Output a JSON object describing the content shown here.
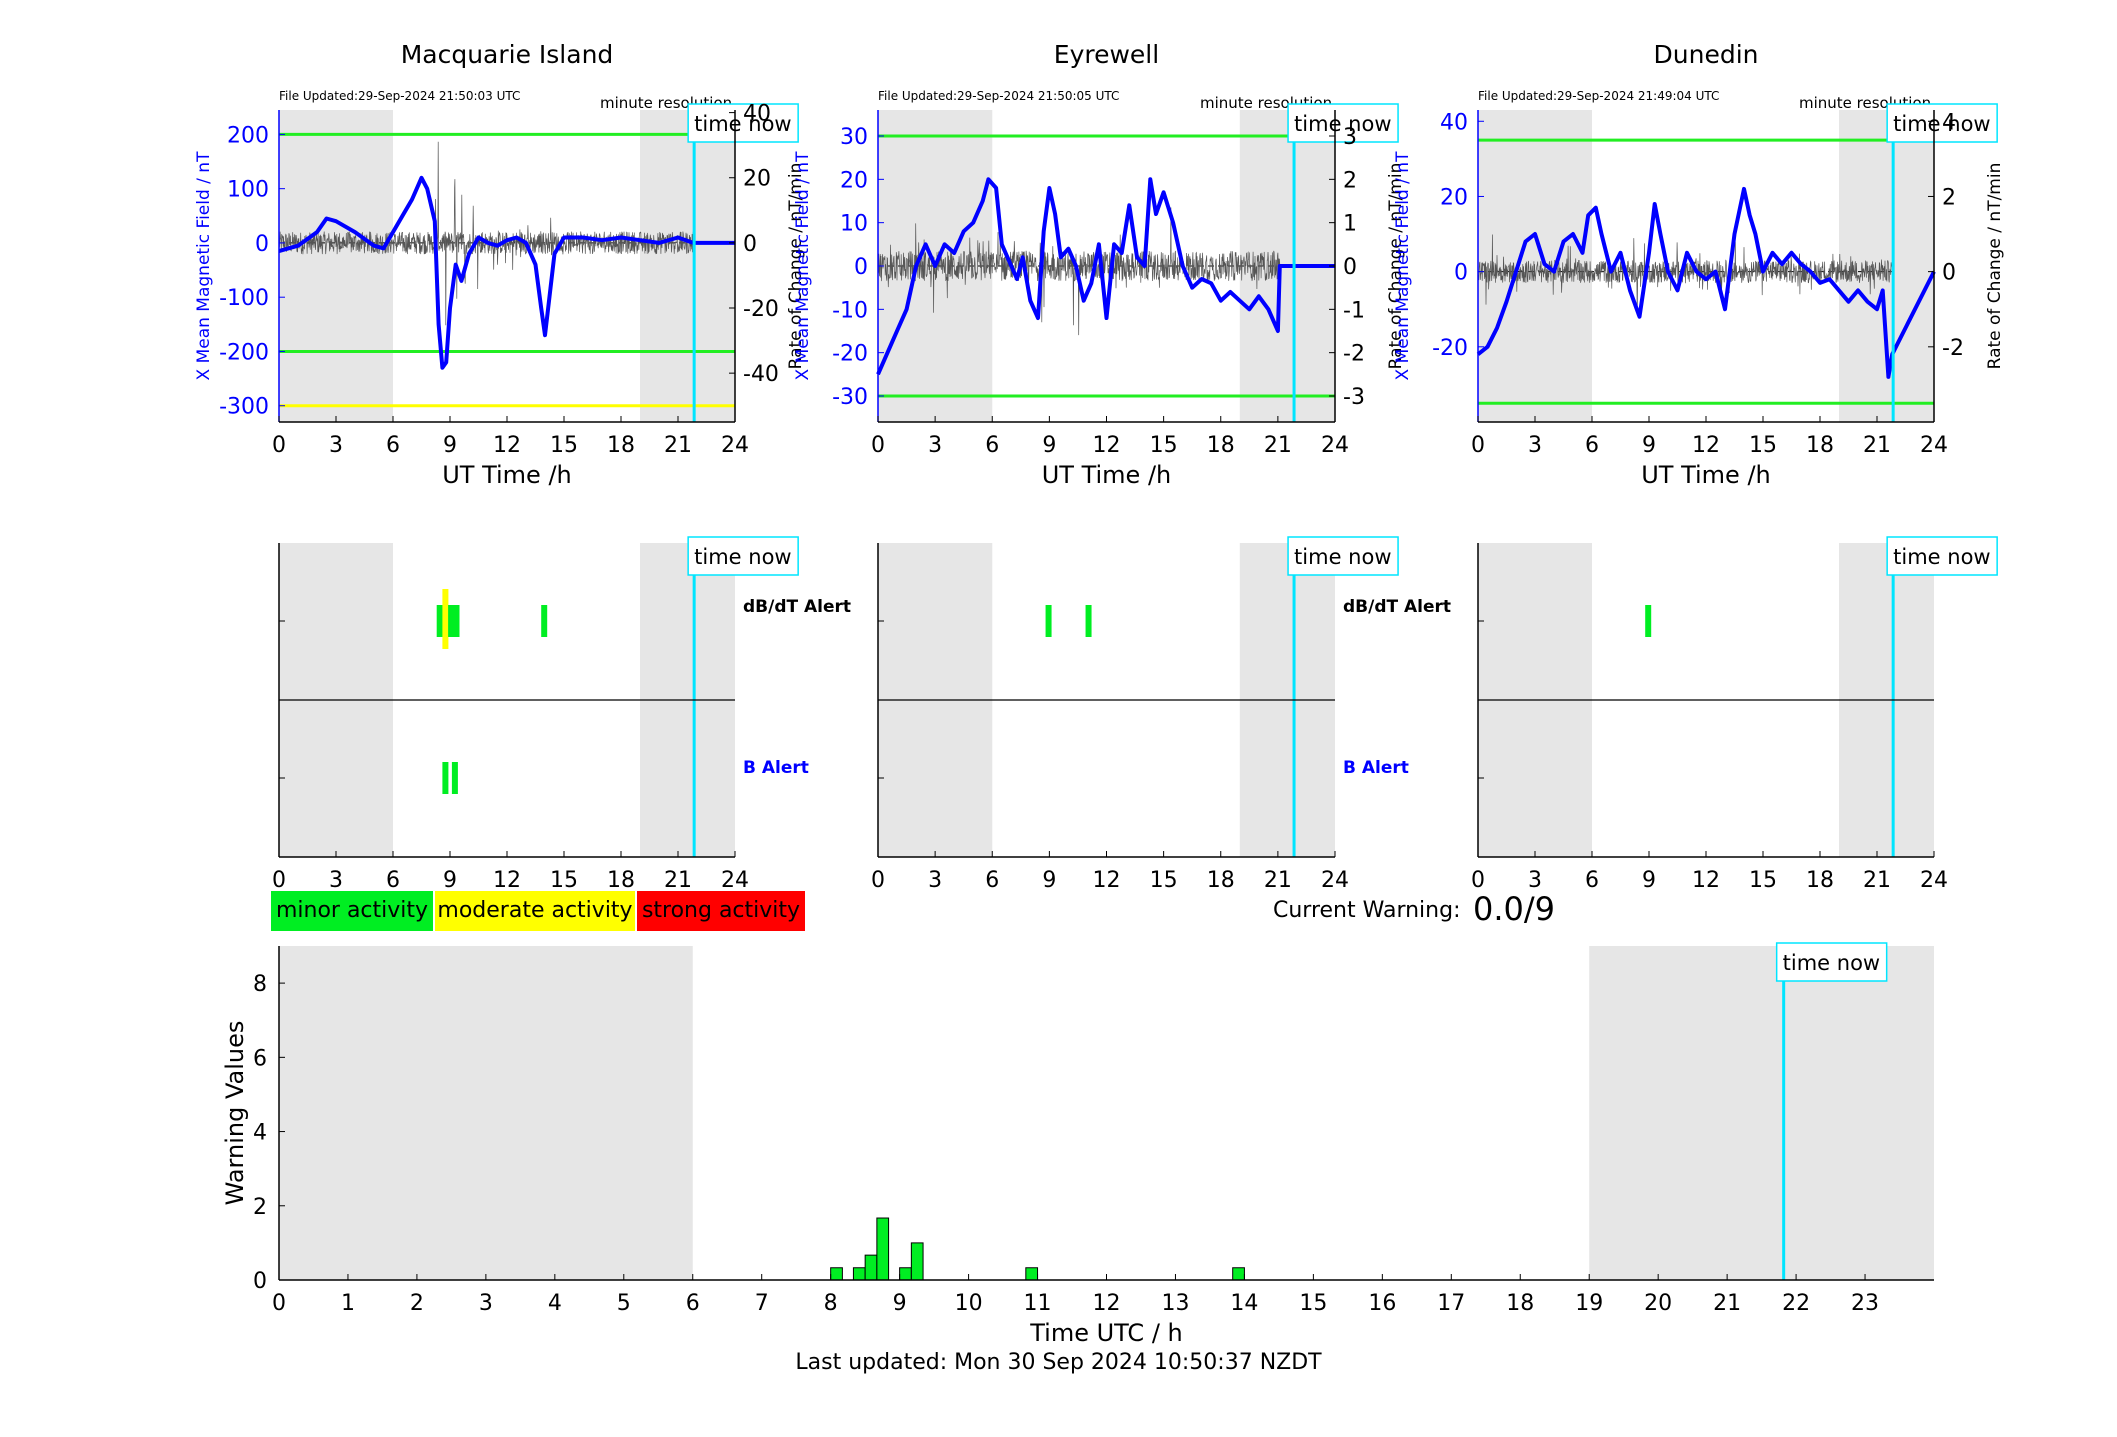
{
  "colors": {
    "night": "#e6e6e6",
    "field": "#0000ff",
    "rate": "#555555",
    "threshold_green": "#22ee22",
    "threshold_yellow": "#ffff00",
    "time_now": "#00e5ff",
    "minor": "#00ee22",
    "moderate": "#ffff00",
    "strong": "#ff0000"
  },
  "legend": {
    "minor": "minor activity",
    "moderate": "moderate activity",
    "strong": "strong activity"
  },
  "current_warning": {
    "label": "Current Warning:",
    "value": "0.0/9"
  },
  "footer": "Last updated: Mon 30 Sep 2024 10:50:37 NZDT",
  "time_now_label": "time now",
  "alert_labels": {
    "dbdt": "dB/dT Alert",
    "b": "B Alert"
  },
  "chart_data": [
    {
      "type": "line",
      "title": "Macquarie Island",
      "file_updated": "File Updated:29-Sep-2024 21:50:03 UTC",
      "resolution": "minute resolution",
      "xlabel": "UT Time /h",
      "ylabel": "X Mean Magnetic Field / nT",
      "ylabel_right": "Rate of Change / nT/min",
      "xlim": [
        0,
        24
      ],
      "ylim": [
        -330,
        245
      ],
      "ylim_right": [
        -55,
        40.8
      ],
      "xticks": [
        0,
        3,
        6,
        9,
        12,
        15,
        18,
        21,
        24
      ],
      "yticks": [
        -300,
        -200,
        -100,
        0,
        100,
        200
      ],
      "yticks_right": [
        -40,
        -20,
        0,
        20,
        40
      ],
      "night": [
        [
          0,
          6
        ],
        [
          19,
          24
        ]
      ],
      "time_now": 21.85,
      "thresholds": [
        {
          "value": 200,
          "color": "green"
        },
        {
          "value": -200,
          "color": "green"
        },
        {
          "value": -300,
          "color": "yellow"
        }
      ],
      "field": {
        "x": [
          0,
          1,
          2,
          2.5,
          3,
          4,
          5,
          5.5,
          6,
          6.5,
          7,
          7.5,
          7.8,
          8.2,
          8.4,
          8.6,
          8.8,
          9,
          9.3,
          9.6,
          10,
          10.5,
          11,
          11.5,
          12,
          12.5,
          13,
          13.5,
          13.8,
          14,
          14.5,
          15,
          16,
          17,
          18,
          19,
          20,
          21,
          21.8,
          24
        ],
        "y": [
          -15,
          -5,
          20,
          45,
          40,
          20,
          -5,
          -10,
          20,
          50,
          80,
          120,
          100,
          40,
          -150,
          -230,
          -220,
          -120,
          -40,
          -70,
          -20,
          10,
          0,
          -5,
          5,
          10,
          0,
          -40,
          -120,
          -170,
          -20,
          10,
          10,
          5,
          10,
          5,
          0,
          10,
          0,
          0
        ]
      },
      "rate_range": [
        0,
        21.8
      ],
      "rate_amp": 3.5,
      "rate_bursts": [
        [
          8,
          10.5,
          35
        ],
        [
          10.5,
          14.5,
          14
        ],
        [
          14.5,
          21,
          4
        ],
        [
          3,
          5,
          5
        ]
      ],
      "dbdt_alerts": [
        {
          "start": 8.3,
          "end": 8.6,
          "level": "minor"
        },
        {
          "start": 8.6,
          "end": 8.9,
          "level": "moderate"
        },
        {
          "start": 8.9,
          "end": 9.5,
          "level": "minor"
        },
        {
          "start": 13.8,
          "end": 14.1,
          "level": "minor"
        }
      ],
      "b_alerts": [
        {
          "start": 8.6,
          "end": 8.9,
          "level": "minor"
        },
        {
          "start": 9.1,
          "end": 9.4,
          "level": "minor"
        }
      ]
    },
    {
      "type": "line",
      "title": "Eyrewell",
      "file_updated": "File Updated:29-Sep-2024 21:50:05 UTC",
      "resolution": "minute resolution",
      "xlabel": "UT Time /h",
      "ylabel": "X Mean Magnetic Field / nT",
      "ylabel_right": "Rate of Change / nT/min",
      "xlim": [
        0,
        24
      ],
      "ylim": [
        -36,
        36
      ],
      "ylim_right": [
        -3.6,
        3.6
      ],
      "xticks": [
        0,
        3,
        6,
        9,
        12,
        15,
        18,
        21,
        24
      ],
      "yticks": [
        -30,
        -20,
        -10,
        0,
        10,
        20,
        30
      ],
      "yticks_right": [
        -3,
        -2,
        -1,
        0,
        1,
        2,
        3
      ],
      "night": [
        [
          0,
          6
        ],
        [
          19,
          24
        ]
      ],
      "time_now": 21.85,
      "thresholds": [
        {
          "value": 30,
          "color": "green"
        },
        {
          "value": -30,
          "color": "green"
        }
      ],
      "field": {
        "x": [
          0,
          0.5,
          1,
          1.5,
          2,
          2.5,
          3,
          3.5,
          4,
          4.5,
          5,
          5.5,
          5.8,
          6.2,
          6.5,
          7,
          7.3,
          7.6,
          8,
          8.4,
          8.7,
          9,
          9.3,
          9.6,
          10,
          10.4,
          10.8,
          11.2,
          11.6,
          12,
          12.4,
          12.8,
          13.2,
          13.6,
          14,
          14.3,
          14.6,
          15,
          15.5,
          16,
          16.5,
          17,
          17.5,
          18,
          18.5,
          19,
          19.5,
          20,
          20.5,
          21,
          21.1,
          24
        ],
        "y": [
          -25,
          -20,
          -15,
          -10,
          0,
          5,
          0,
          5,
          3,
          8,
          10,
          15,
          20,
          18,
          5,
          0,
          -3,
          2,
          -8,
          -12,
          8,
          18,
          12,
          2,
          4,
          0,
          -8,
          -4,
          5,
          -12,
          5,
          3,
          14,
          2,
          0,
          20,
          12,
          17,
          10,
          0,
          -5,
          -3,
          -4,
          -8,
          -6,
          -8,
          -10,
          -7,
          -10,
          -15,
          0,
          0
        ]
      },
      "rate_range": [
        0,
        21.1
      ],
      "rate_amp": 0.35,
      "rate_bursts": [
        [
          0,
          3,
          1.4
        ],
        [
          3,
          8,
          1.0
        ],
        [
          8,
          12,
          2.0
        ],
        [
          12,
          16,
          1.5
        ],
        [
          16,
          21,
          0.8
        ]
      ],
      "dbdt_alerts": [
        {
          "start": 8.8,
          "end": 9.1,
          "level": "minor"
        },
        {
          "start": 10.9,
          "end": 11.2,
          "level": "minor"
        }
      ],
      "b_alerts": []
    },
    {
      "type": "line",
      "title": "Dunedin",
      "file_updated": "File Updated:29-Sep-2024 21:49:04 UTC",
      "resolution": "minute resolution",
      "xlabel": "UT Time /h",
      "ylabel": "X Mean Magnetic Field / nT",
      "ylabel_right": "Rate of Change / nT/min",
      "xlim": [
        0,
        24
      ],
      "ylim": [
        -40,
        43
      ],
      "ylim_right": [
        -4,
        4.3
      ],
      "xticks": [
        0,
        3,
        6,
        9,
        12,
        15,
        18,
        21,
        24
      ],
      "yticks": [
        -20,
        0,
        20,
        40
      ],
      "yticks_right": [
        -2,
        0,
        2,
        4
      ],
      "night": [
        [
          0,
          6
        ],
        [
          19,
          24
        ]
      ],
      "time_now": 21.85,
      "thresholds": [
        {
          "value": 35,
          "color": "green"
        },
        {
          "value": -35,
          "color": "green"
        }
      ],
      "field": {
        "x": [
          0,
          0.5,
          1,
          1.5,
          2,
          2.5,
          3,
          3.5,
          4,
          4.5,
          5,
          5.5,
          5.8,
          6.2,
          6.5,
          7,
          7.5,
          8,
          8.5,
          9,
          9.3,
          9.6,
          10,
          10.5,
          11,
          11.5,
          12,
          12.5,
          13,
          13.5,
          14,
          14.3,
          14.6,
          15,
          15.5,
          16,
          16.5,
          17,
          17.5,
          18,
          18.5,
          19,
          19.5,
          20,
          20.5,
          21,
          21.3,
          21.6,
          21.8,
          24
        ],
        "y": [
          -22,
          -20,
          -15,
          -8,
          0,
          8,
          10,
          2,
          0,
          8,
          10,
          5,
          15,
          17,
          10,
          0,
          5,
          -5,
          -12,
          5,
          18,
          10,
          0,
          -5,
          5,
          0,
          -2,
          0,
          -10,
          10,
          22,
          15,
          10,
          0,
          5,
          2,
          5,
          2,
          0,
          -3,
          -2,
          -5,
          -8,
          -5,
          -8,
          -10,
          -5,
          -28,
          -22,
          0
        ]
      },
      "rate_range": [
        0,
        21.8
      ],
      "rate_amp": 0.3,
      "rate_bursts": [
        [
          0,
          3,
          1.2
        ],
        [
          3,
          8,
          0.9
        ],
        [
          8,
          12,
          1.6
        ],
        [
          12,
          16,
          1.0
        ],
        [
          16,
          21.8,
          0.7
        ]
      ],
      "dbdt_alerts": [
        {
          "start": 8.8,
          "end": 9.1,
          "level": "minor"
        }
      ],
      "b_alerts": []
    },
    {
      "type": "bar",
      "title": "",
      "xlabel": "Time UTC / h",
      "ylabel": "Warning Values",
      "xlim": [
        0,
        24
      ],
      "ylim": [
        0,
        9
      ],
      "xticks": [
        0,
        1,
        2,
        3,
        4,
        5,
        6,
        7,
        8,
        9,
        10,
        11,
        12,
        13,
        14,
        15,
        16,
        17,
        18,
        19,
        20,
        21,
        22,
        23
      ],
      "yticks": [
        0,
        2,
        4,
        6,
        8
      ],
      "night": [
        [
          0,
          6
        ],
        [
          19,
          24
        ]
      ],
      "time_now": 21.82,
      "bars": [
        {
          "x": 8.0,
          "value": 0.33
        },
        {
          "x": 8.33,
          "value": 0.33
        },
        {
          "x": 8.5,
          "value": 0.67
        },
        {
          "x": 8.67,
          "value": 1.67
        },
        {
          "x": 9.0,
          "value": 0.33
        },
        {
          "x": 9.17,
          "value": 1.0
        },
        {
          "x": 10.83,
          "value": 0.33
        },
        {
          "x": 13.83,
          "value": 0.33
        }
      ],
      "bar_width": 0.17
    }
  ]
}
